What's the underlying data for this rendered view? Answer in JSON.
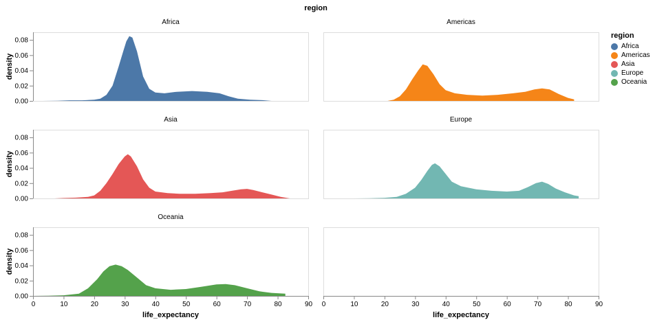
{
  "title": "region",
  "legend": {
    "title": "region",
    "items": [
      {
        "label": "Africa",
        "color": "#4c78a8"
      },
      {
        "label": "Americas",
        "color": "#f58518"
      },
      {
        "label": "Asia",
        "color": "#e45756"
      },
      {
        "label": "Europe",
        "color": "#72b7b2"
      },
      {
        "label": "Oceania",
        "color": "#54a24b"
      }
    ]
  },
  "chart_data": {
    "type": "area",
    "facet_field": "region",
    "xlabel": "life_expectancy",
    "ylabel": "density",
    "xlim": [
      0,
      90
    ],
    "ylim": [
      0,
      0.09
    ],
    "x_ticks": [
      0,
      10,
      20,
      30,
      40,
      50,
      60,
      70,
      80,
      90
    ],
    "y_ticks": [
      0,
      0.02,
      0.04,
      0.06,
      0.08
    ],
    "y_tick_labels": [
      "0.00",
      "0.02",
      "0.04",
      "0.06",
      "0.08"
    ],
    "grid": false,
    "legend_position": "right",
    "facets": [
      {
        "name": "Africa",
        "color": "#4c78a8",
        "points": [
          [
            3,
            0
          ],
          [
            8,
            0.0003
          ],
          [
            12,
            0.0008
          ],
          [
            16,
            0.0008
          ],
          [
            20,
            0.0015
          ],
          [
            22,
            0.003
          ],
          [
            24,
            0.008
          ],
          [
            26,
            0.02
          ],
          [
            28,
            0.045
          ],
          [
            29.5,
            0.065
          ],
          [
            30.5,
            0.078
          ],
          [
            31.5,
            0.085
          ],
          [
            32.5,
            0.083
          ],
          [
            34,
            0.065
          ],
          [
            36,
            0.032
          ],
          [
            38,
            0.016
          ],
          [
            40,
            0.011
          ],
          [
            43,
            0.01
          ],
          [
            47,
            0.012
          ],
          [
            52,
            0.013
          ],
          [
            57,
            0.012
          ],
          [
            61,
            0.01
          ],
          [
            64,
            0.006
          ],
          [
            67,
            0.003
          ],
          [
            71,
            0.0015
          ],
          [
            75,
            0.001
          ],
          [
            78,
            0
          ]
        ]
      },
      {
        "name": "Americas",
        "color": "#f58518",
        "points": [
          [
            21,
            0
          ],
          [
            23,
            0.0015
          ],
          [
            25,
            0.006
          ],
          [
            27,
            0.015
          ],
          [
            29,
            0.028
          ],
          [
            31,
            0.04
          ],
          [
            32.5,
            0.048
          ],
          [
            34,
            0.046
          ],
          [
            36,
            0.035
          ],
          [
            38,
            0.022
          ],
          [
            40,
            0.014
          ],
          [
            43,
            0.01
          ],
          [
            47,
            0.008
          ],
          [
            52,
            0.007
          ],
          [
            57,
            0.008
          ],
          [
            62,
            0.01
          ],
          [
            66,
            0.012
          ],
          [
            69,
            0.015
          ],
          [
            71.5,
            0.0165
          ],
          [
            74,
            0.015
          ],
          [
            77,
            0.009
          ],
          [
            80,
            0.004
          ],
          [
            82,
            0.002
          ]
        ]
      },
      {
        "name": "Asia",
        "color": "#e45756",
        "points": [
          [
            7,
            0
          ],
          [
            10,
            0.0005
          ],
          [
            14,
            0.001
          ],
          [
            18,
            0.002
          ],
          [
            20,
            0.004
          ],
          [
            22,
            0.01
          ],
          [
            24,
            0.02
          ],
          [
            26,
            0.032
          ],
          [
            28,
            0.045
          ],
          [
            30,
            0.055
          ],
          [
            31,
            0.058
          ],
          [
            32,
            0.055
          ],
          [
            34,
            0.042
          ],
          [
            36,
            0.025
          ],
          [
            38,
            0.014
          ],
          [
            40,
            0.009
          ],
          [
            44,
            0.007
          ],
          [
            48,
            0.006
          ],
          [
            53,
            0.006
          ],
          [
            58,
            0.007
          ],
          [
            62,
            0.008
          ],
          [
            65,
            0.01
          ],
          [
            68,
            0.012
          ],
          [
            70,
            0.0125
          ],
          [
            72,
            0.011
          ],
          [
            75,
            0.008
          ],
          [
            78,
            0.005
          ],
          [
            81,
            0.002
          ],
          [
            84,
            0
          ]
        ]
      },
      {
        "name": "Europe",
        "color": "#72b7b2",
        "points": [
          [
            10,
            0
          ],
          [
            15,
            0.0003
          ],
          [
            20,
            0.0008
          ],
          [
            24,
            0.002
          ],
          [
            27,
            0.006
          ],
          [
            30,
            0.014
          ],
          [
            32,
            0.024
          ],
          [
            34,
            0.036
          ],
          [
            35.5,
            0.044
          ],
          [
            36.5,
            0.046
          ],
          [
            38,
            0.042
          ],
          [
            40,
            0.032
          ],
          [
            42,
            0.022
          ],
          [
            45,
            0.016
          ],
          [
            50,
            0.012
          ],
          [
            55,
            0.01
          ],
          [
            60,
            0.009
          ],
          [
            64,
            0.01
          ],
          [
            67,
            0.015
          ],
          [
            69.5,
            0.02
          ],
          [
            71.5,
            0.022
          ],
          [
            73.5,
            0.019
          ],
          [
            76,
            0.013
          ],
          [
            79,
            0.008
          ],
          [
            82,
            0.004
          ],
          [
            83.5,
            0.003
          ]
        ]
      },
      {
        "name": "Oceania",
        "color": "#54a24b",
        "points": [
          [
            0,
            0
          ],
          [
            5,
            0.0003
          ],
          [
            10,
            0.0008
          ],
          [
            15,
            0.003
          ],
          [
            18,
            0.01
          ],
          [
            21,
            0.022
          ],
          [
            23,
            0.032
          ],
          [
            25,
            0.039
          ],
          [
            27,
            0.041
          ],
          [
            29,
            0.039
          ],
          [
            31,
            0.034
          ],
          [
            34,
            0.024
          ],
          [
            37,
            0.014
          ],
          [
            40,
            0.01
          ],
          [
            45,
            0.008
          ],
          [
            50,
            0.009
          ],
          [
            55,
            0.012
          ],
          [
            60,
            0.015
          ],
          [
            63,
            0.0155
          ],
          [
            66,
            0.014
          ],
          [
            70,
            0.01
          ],
          [
            74,
            0.006
          ],
          [
            78,
            0.004
          ],
          [
            82.5,
            0.003
          ]
        ]
      }
    ]
  }
}
